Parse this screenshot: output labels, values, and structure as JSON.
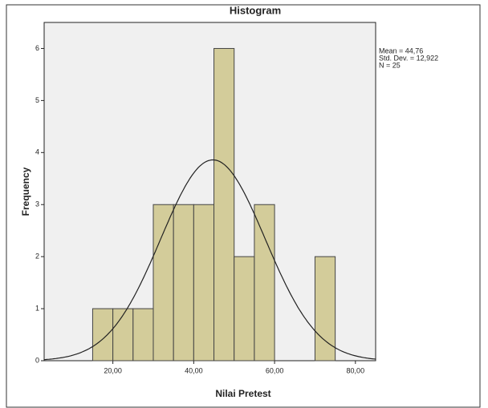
{
  "chart_data": {
    "type": "histogram",
    "title": "Histogram",
    "x_label": "Nilai Pretest",
    "y_label": "Frequency",
    "bins": [
      15,
      20,
      25,
      30,
      35,
      40,
      45,
      50,
      55,
      60,
      65,
      70,
      75
    ],
    "values": [
      1,
      1,
      1,
      3,
      3,
      3,
      6,
      2,
      3,
      0,
      0,
      2
    ],
    "color": "#d3cc9a",
    "xlim": [
      3,
      85
    ],
    "ylim": [
      0,
      6.5
    ],
    "xticks": [
      {
        "value": 20,
        "label": "20,00"
      },
      {
        "value": 40,
        "label": "40,00"
      },
      {
        "value": 60,
        "label": "60,00"
      },
      {
        "value": 80,
        "label": "80,00"
      }
    ],
    "yticks": [
      0,
      1,
      2,
      3,
      4,
      5,
      6
    ],
    "stats": [
      {
        "value": 44.76,
        "label": "Mean = 44,76"
      },
      {
        "value": 12.922,
        "label": "Std. Dev. = 12,922"
      },
      {
        "value": 25,
        "label": "N = 25"
      }
    ]
  }
}
